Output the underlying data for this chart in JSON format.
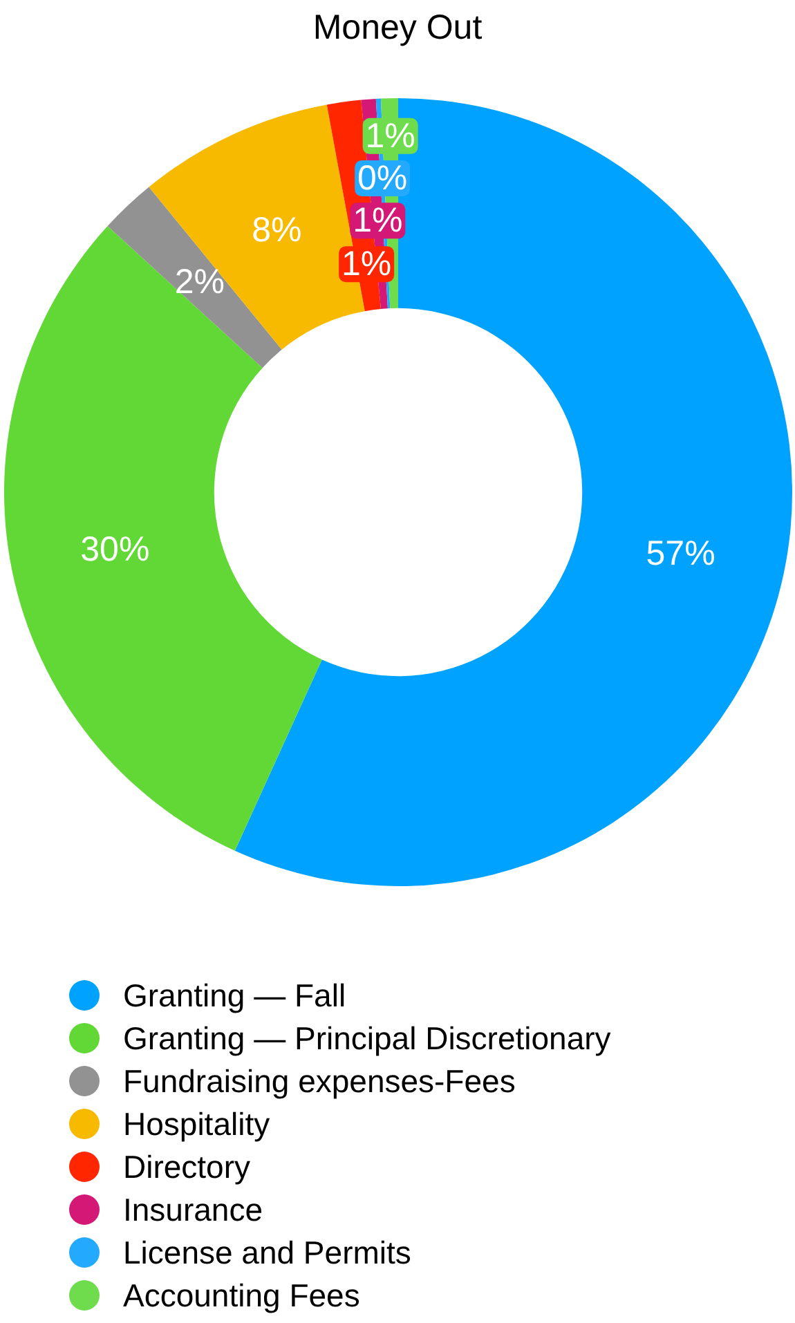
{
  "chart_data": {
    "type": "donut",
    "title": "Money Out",
    "categories": [
      "Granting — Fall",
      "Granting — Principal Discretionary",
      "Fundraising expenses-Fees",
      "Hospitality",
      "Directory",
      "Insurance",
      "License and Permits",
      "Accounting Fees"
    ],
    "values": [
      56.8,
      30,
      2.3,
      8,
      1.4,
      0.6,
      0.2,
      0.7
    ],
    "value_labels": [
      "57%",
      "30%",
      "2%",
      "8%",
      "1%",
      "1%",
      "0%",
      "1%"
    ],
    "colors": [
      "#00a2ff",
      "#61d836",
      "#929292",
      "#f8ba00",
      "#ff2600",
      "#d31876",
      "#23aaff",
      "#6fdc4d"
    ],
    "legend": "bottom"
  }
}
